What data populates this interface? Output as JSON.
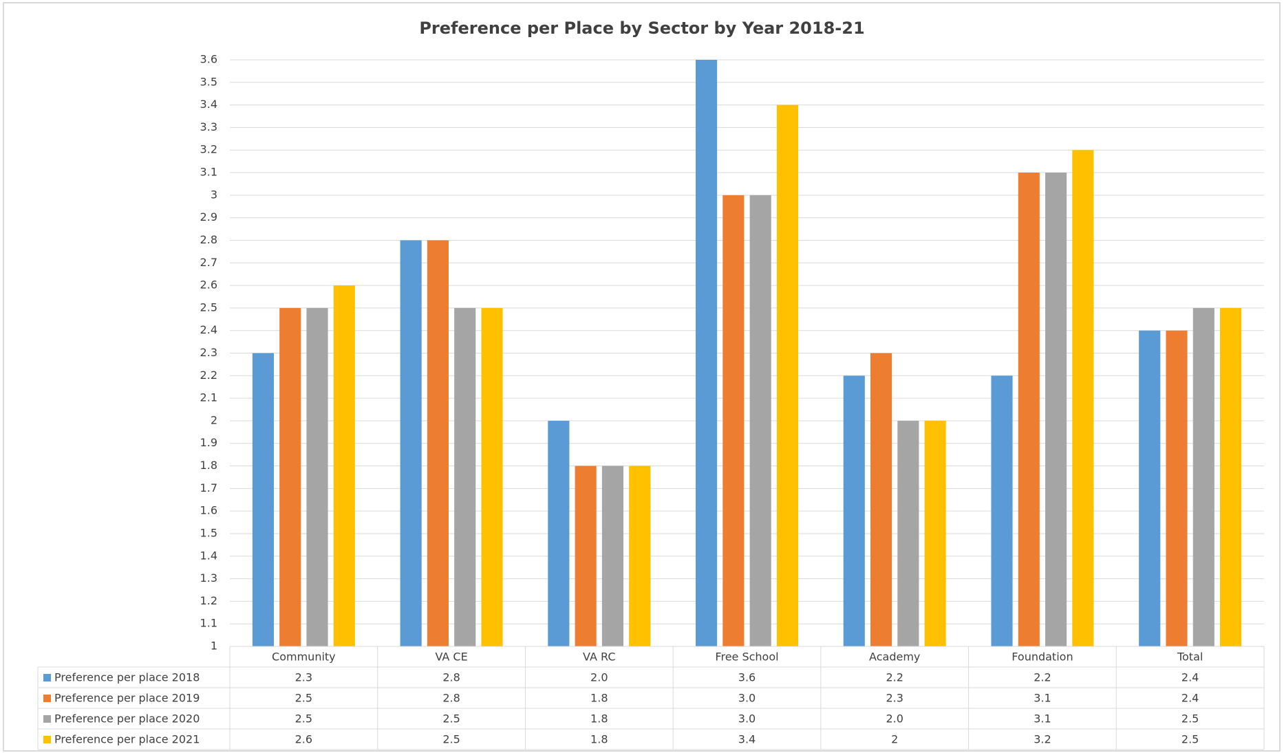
{
  "chart_data": {
    "type": "bar",
    "title": "Preference per Place by Sector by Year 2018-21",
    "categories": [
      "Community",
      "VA CE",
      "VA RC",
      "Free School",
      "Academy",
      "Foundation",
      "Total"
    ],
    "series": [
      {
        "name": "Preference per place 2018",
        "color": "#5b9bd5",
        "values": [
          2.3,
          2.8,
          2.0,
          3.6,
          2.2,
          2.2,
          2.4
        ],
        "value_labels": [
          "2.3",
          "2.8",
          "2.0",
          "3.6",
          "2.2",
          "2.2",
          "2.4"
        ]
      },
      {
        "name": "Preference per place 2019",
        "color": "#ed7d31",
        "values": [
          2.5,
          2.8,
          1.8,
          3.0,
          2.3,
          3.1,
          2.4
        ],
        "value_labels": [
          "2.5",
          "2.8",
          "1.8",
          "3.0",
          "2.3",
          "3.1",
          "2.4"
        ]
      },
      {
        "name": "Preference per place 2020",
        "color": "#a5a5a5",
        "values": [
          2.5,
          2.5,
          1.8,
          3.0,
          2.0,
          3.1,
          2.5
        ],
        "value_labels": [
          "2.5",
          "2.5",
          "1.8",
          "3.0",
          "2.0",
          "3.1",
          "2.5"
        ]
      },
      {
        "name": "Preference per place 2021",
        "color": "#ffc000",
        "values": [
          2.6,
          2.5,
          1.8,
          3.4,
          2,
          3.2,
          2.5
        ],
        "value_labels": [
          "2.6",
          "2.5",
          "1.8",
          "3.4",
          "2",
          "3.2",
          "2.5"
        ]
      }
    ],
    "ylim": [
      1,
      3.6
    ],
    "yticks": [
      1,
      1.1,
      1.2,
      1.3,
      1.4,
      1.5,
      1.6,
      1.7,
      1.8,
      1.9,
      2,
      2.1,
      2.2,
      2.3,
      2.4,
      2.5,
      2.6,
      2.7,
      2.8,
      2.9,
      3,
      3.1,
      3.2,
      3.3,
      3.4,
      3.5,
      3.6
    ],
    "grid": true
  }
}
